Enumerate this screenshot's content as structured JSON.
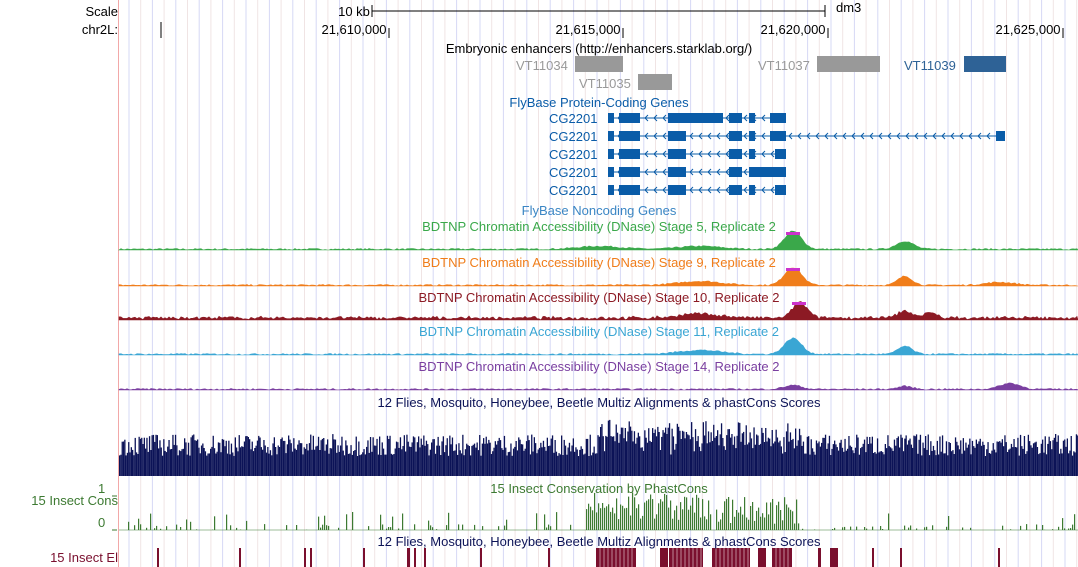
{
  "labels": {
    "scale": "Scale",
    "chrom": "chr2L:",
    "insect_cons_track": "15 Insect Cons",
    "insect_cons_max": "1",
    "insect_cons_min": "0",
    "insect_el_track": "15 Insect El"
  },
  "ruler": {
    "scale_text": "10 kb",
    "assembly": "dm3",
    "positions": [
      "21,610,000",
      "21,615,000",
      "21,620,000",
      "21,625,000"
    ]
  },
  "tracks": {
    "enhancers": {
      "title": "Embryonic enhancers (http://enhancers.starklab.org/)",
      "items": [
        {
          "label": "VT11034",
          "color": "#999999"
        },
        {
          "label": "VT11035",
          "color": "#999999"
        },
        {
          "label": "VT11037",
          "color": "#999999"
        },
        {
          "label": "VT11039",
          "color": "#2e6296"
        }
      ]
    },
    "genes": {
      "title": "FlyBase Protein-Coding Genes",
      "color": "#0a5ca8",
      "transcripts": [
        "CG2201",
        "CG2201",
        "CG2201",
        "CG2201",
        "CG2201"
      ]
    },
    "noncoding": {
      "title": "FlyBase Noncoding Genes",
      "color": "#3b86c4"
    },
    "dnase": [
      {
        "title": "BDTNP Chromatin Accessibility (DNase) Stage 5, Replicate 2",
        "color": "#3aa84a"
      },
      {
        "title": "BDTNP Chromatin Accessibility (DNase) Stage 9, Replicate 2",
        "color": "#f07d1a"
      },
      {
        "title": "BDTNP Chromatin Accessibility (DNase) Stage 10, Replicate 2",
        "color": "#8c1a24"
      },
      {
        "title": "BDTNP Chromatin Accessibility (DNase) Stage 11, Replicate 2",
        "color": "#3aa6d4"
      },
      {
        "title": "BDTNP Chromatin Accessibility (DNase) Stage 14, Replicate 2",
        "color": "#7a3fa0"
      }
    ],
    "multiz": {
      "title": "12 Flies, Mosquito, Honeybee, Beetle Multiz Alignments & phastCons Scores",
      "color": "#0c1357"
    },
    "phastcons": {
      "title": "15 Insect Conservation by PhastCons",
      "color": "#3d7a32"
    },
    "elements": {
      "title": "12 Flies, Mosquito, Honeybee, Beetle Multiz Alignments & phastCons Scores",
      "color": "#7a0f2e"
    }
  }
}
